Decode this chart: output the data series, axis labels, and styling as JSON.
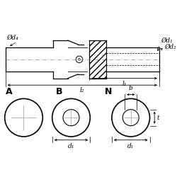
{
  "bg_color": "#ffffff",
  "line_color": "#000000",
  "title_A": "A",
  "title_B": "B",
  "title_N": "N",
  "label_d1": "d₁",
  "label_d2": "d₂",
  "label_d4": "d₄",
  "label_l1": "l₁",
  "label_l2": "l₂",
  "label_b": "b",
  "label_t": "t",
  "label_od": "Ø",
  "font_size_label": 6.5,
  "font_size_title": 9
}
